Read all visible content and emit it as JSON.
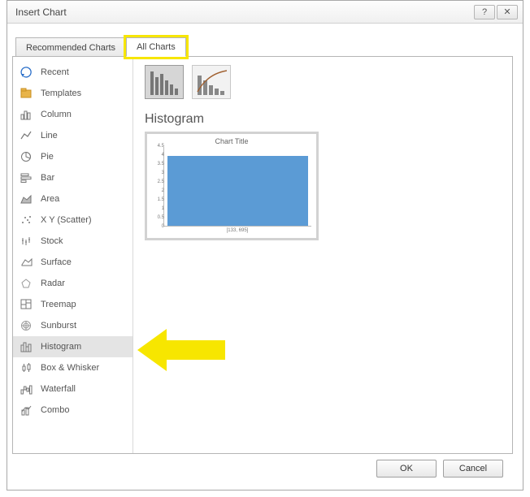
{
  "window": {
    "title": "Insert Chart",
    "help_glyph": "?",
    "close_glyph": "✕"
  },
  "tabs": {
    "recommended": "Recommended Charts",
    "all": "All Charts",
    "active": "all",
    "highlight": "all"
  },
  "sidebar": {
    "items": [
      {
        "label": "Recent",
        "icon": "recent",
        "selected": false
      },
      {
        "label": "Templates",
        "icon": "templates",
        "selected": false
      },
      {
        "label": "Column",
        "icon": "column",
        "selected": false
      },
      {
        "label": "Line",
        "icon": "line",
        "selected": false
      },
      {
        "label": "Pie",
        "icon": "pie",
        "selected": false
      },
      {
        "label": "Bar",
        "icon": "bar",
        "selected": false
      },
      {
        "label": "Area",
        "icon": "area",
        "selected": false
      },
      {
        "label": "X Y (Scatter)",
        "icon": "scatter",
        "selected": false
      },
      {
        "label": "Stock",
        "icon": "stock",
        "selected": false
      },
      {
        "label": "Surface",
        "icon": "surface",
        "selected": false
      },
      {
        "label": "Radar",
        "icon": "radar",
        "selected": false
      },
      {
        "label": "Treemap",
        "icon": "treemap",
        "selected": false
      },
      {
        "label": "Sunburst",
        "icon": "sunburst",
        "selected": false
      },
      {
        "label": "Histogram",
        "icon": "histogram",
        "selected": true
      },
      {
        "label": "Box & Whisker",
        "icon": "box",
        "selected": false
      },
      {
        "label": "Waterfall",
        "icon": "waterfall",
        "selected": false
      },
      {
        "label": "Combo",
        "icon": "combo",
        "selected": false
      }
    ]
  },
  "subtypes": {
    "list": [
      {
        "name": "histogram",
        "selected": true
      },
      {
        "name": "pareto",
        "selected": false
      }
    ]
  },
  "preview": {
    "section_title": "Histogram",
    "chart_title": "Chart Title",
    "type": "histogram",
    "y_ticks": [
      "4.5",
      "4",
      "3.5",
      "3",
      "2.5",
      "2",
      "1.5",
      "1",
      "0.5",
      "0"
    ],
    "x_label": "[133, 695]",
    "bar_value": 4,
    "y_max": 4.5,
    "bar_color": "#5b9bd5",
    "background": "#ffffff",
    "axis_color": "#bbbbbb",
    "tick_font_size": 6
  },
  "buttons": {
    "ok": "OK",
    "cancel": "Cancel"
  },
  "annotations": {
    "arrow_color": "#f7e600",
    "tab_highlight_color": "#f7e600"
  }
}
